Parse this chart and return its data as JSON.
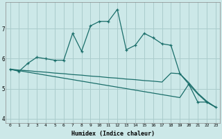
{
  "xlabel": "Humidex (Indice chaleur)",
  "ylabel": "",
  "bg_color": "#cce8e8",
  "grid_color": "#aacccc",
  "line_color": "#1a6e6a",
  "xlim": [
    -0.5,
    23.5
  ],
  "ylim": [
    3.85,
    7.9
  ],
  "yticks": [
    4,
    5,
    6,
    7
  ],
  "xticks": [
    0,
    1,
    2,
    3,
    4,
    5,
    6,
    7,
    8,
    9,
    10,
    11,
    12,
    13,
    14,
    15,
    16,
    17,
    18,
    19,
    20,
    21,
    22,
    23
  ],
  "line1_x": [
    0,
    1,
    2,
    3,
    4,
    5,
    6,
    7,
    8,
    9,
    10,
    11,
    12,
    13,
    14,
    15,
    16,
    17,
    18,
    19,
    20,
    21,
    22,
    23
  ],
  "line1_y": [
    5.65,
    5.58,
    5.85,
    6.05,
    6.0,
    5.95,
    5.95,
    6.85,
    6.25,
    7.1,
    7.25,
    7.25,
    7.65,
    6.3,
    6.45,
    6.85,
    6.7,
    6.5,
    6.45,
    5.5,
    5.15,
    4.55,
    4.55,
    4.38
  ],
  "line2_x": [
    0,
    1,
    2,
    3,
    4,
    5,
    6,
    7,
    8,
    9,
    10,
    11,
    12,
    13,
    14,
    15,
    16,
    17,
    18,
    19,
    20,
    21,
    22,
    23
  ],
  "line2_y": [
    5.65,
    5.62,
    5.6,
    5.57,
    5.55,
    5.52,
    5.5,
    5.47,
    5.45,
    5.42,
    5.4,
    5.37,
    5.35,
    5.32,
    5.3,
    5.27,
    5.25,
    5.22,
    5.52,
    5.5,
    5.2,
    4.85,
    4.58,
    4.38
  ],
  "line3_x": [
    0,
    1,
    2,
    3,
    4,
    5,
    6,
    7,
    8,
    9,
    10,
    11,
    12,
    13,
    14,
    15,
    16,
    17,
    18,
    19,
    20,
    21,
    22,
    23
  ],
  "line3_y": [
    5.65,
    5.6,
    5.55,
    5.5,
    5.45,
    5.4,
    5.35,
    5.3,
    5.25,
    5.2,
    5.15,
    5.1,
    5.05,
    5.0,
    4.95,
    4.9,
    4.85,
    4.8,
    4.75,
    4.7,
    5.15,
    4.82,
    4.55,
    4.38
  ]
}
